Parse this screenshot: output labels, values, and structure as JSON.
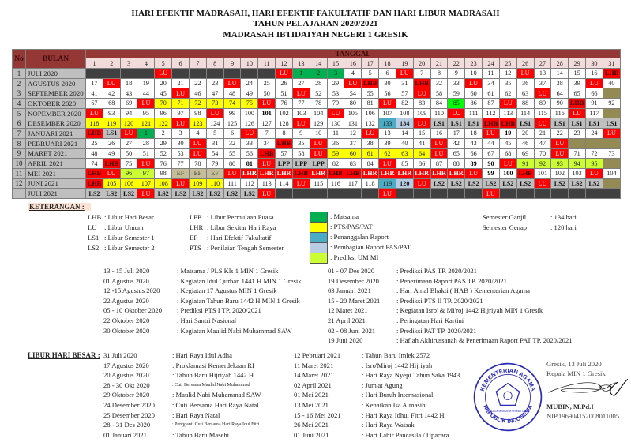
{
  "title": {
    "line1": "HARI EFEKTIF MADRASAH, HARI EFEKTIF FAKULTATIF DAN HARI LIBUR MADRASAH",
    "line2": "TAHUN PELAJARAN 2020/2021",
    "line3": "MADRASAH IBTIDAIYAH NEGERI 1 GRESIK"
  },
  "table": {
    "col_no": "No",
    "col_bulan": "BULAN",
    "col_tanggal": "TANGGAL",
    "days": [
      "1",
      "2",
      "3",
      "4",
      "5",
      "6",
      "7",
      "8",
      "9",
      "10",
      "11",
      "12",
      "13",
      "14",
      "15",
      "16",
      "17",
      "18",
      "19",
      "20",
      "21",
      "22",
      "23",
      "24",
      "25",
      "26",
      "27",
      "28",
      "29",
      "30",
      "31"
    ],
    "rows": [
      {
        "no": "1",
        "month": "JULI 2020",
        "cells": [
          "d:",
          "d:",
          "d:",
          "d:",
          "LU",
          "d:",
          "d:",
          "d:",
          "d:",
          "d:",
          "d:",
          "LU",
          "g:1",
          "g:2",
          "g:3",
          "4",
          "5",
          "6",
          "LU",
          "7",
          "8",
          "9",
          "10",
          "11",
          "12",
          "LU",
          "13",
          "14",
          "15",
          "16",
          "LHB"
        ]
      },
      {
        "no": "2",
        "month": "AGUSTUS 2020",
        "cells": [
          "17",
          "LU",
          "18",
          "19",
          "20",
          "21",
          "22",
          "23",
          "LU",
          "24",
          "25",
          "26",
          "27",
          "28",
          "29",
          "LU",
          "LHB",
          "30",
          "31",
          "LHB",
          "32",
          "33",
          "LU",
          "34",
          "35",
          "36",
          "37",
          "38",
          "39",
          "LU",
          "40"
        ]
      },
      {
        "no": "3",
        "month": "SEPTEMBER 2020",
        "cells": [
          "41",
          "42",
          "43",
          "44",
          "45",
          "LU",
          "46",
          "47",
          "48",
          "49",
          "50",
          "51",
          "LU",
          "52",
          "53",
          "54",
          "55",
          "56",
          "57",
          "LU",
          "58",
          "59",
          "60",
          "61",
          "62",
          "63",
          "LU",
          "64",
          "65",
          "66",
          "o:"
        ]
      },
      {
        "no": "4",
        "month": "OKTOBER 2020",
        "cells": [
          "67",
          "68",
          "69",
          "LU",
          "y:70",
          "y:71",
          "y:72",
          "y:73",
          "y:74",
          "y:75",
          "LU",
          "76",
          "77",
          "78",
          "79",
          "80",
          "81",
          "LU",
          "82",
          "83",
          "84",
          "G:85",
          "86",
          "87",
          "LU",
          "88",
          "89",
          "90",
          "LHB",
          "91",
          "92"
        ]
      },
      {
        "no": "5",
        "month": "NOPEMBER 2020",
        "cells": [
          "LU",
          "93",
          "94",
          "95",
          "96",
          "97",
          "98",
          "LU",
          "99",
          "100",
          "B:101",
          "102",
          "103",
          "104",
          "LU",
          "105",
          "106",
          "107",
          "108",
          "109",
          "110",
          "LU",
          "111",
          "112",
          "113",
          "114",
          "115",
          "116",
          "LU",
          "117",
          "o:"
        ]
      },
      {
        "no": "6",
        "month": "DESEMBER 2020",
        "cells": [
          "y:118",
          "y:119",
          "y:120",
          "y:121",
          "y:122",
          "LU",
          "y:123",
          "124",
          "125",
          "126",
          "127",
          "128",
          "LU",
          "129",
          "130",
          "131",
          "132",
          "t:133",
          "b:134",
          "LU",
          "LS1",
          "LS1",
          "LS1",
          "LHB",
          "LHB",
          "LS1",
          "LU",
          "LS1",
          "LS1",
          "LS1",
          "LS1"
        ]
      },
      {
        "no": "7",
        "month": "JANUARI 2021",
        "cells": [
          "LHB",
          "LS1",
          "LU",
          "g:1",
          "2",
          "3",
          "4",
          "5",
          "6",
          "LU",
          "7",
          "8",
          "9",
          "10",
          "11",
          "12",
          "LU",
          "13",
          "14",
          "15",
          "16",
          "17",
          "18",
          "LU",
          "B:19",
          "20",
          "21",
          "22",
          "23",
          "24",
          "LU"
        ]
      },
      {
        "no": "8",
        "month": "PEBRUARI 2021",
        "cells": [
          "25",
          "26",
          "27",
          "28",
          "29",
          "30",
          "LU",
          "31",
          "32",
          "33",
          "34",
          "LHB",
          "35",
          "LU",
          "36",
          "37",
          "38",
          "39",
          "40",
          "41",
          "LU",
          "42",
          "43",
          "44",
          "45",
          "46",
          "47",
          "LU",
          "o:",
          "o:",
          "o:"
        ]
      },
      {
        "no": "9",
        "month": "MARET 2021",
        "cells": [
          "48",
          "49",
          "50",
          "51",
          "52",
          "53",
          "LU",
          "54",
          "55",
          "56",
          "LHB",
          "57",
          "58",
          "LU",
          "y:59",
          "y:60",
          "y:61",
          "y:62",
          "y:63",
          "y:64",
          "LU",
          "65",
          "66",
          "67",
          "68",
          "69",
          "70",
          "LU",
          "71",
          "72",
          "73"
        ]
      },
      {
        "no": "10",
        "month": "APRIL 2021",
        "cells": [
          "74",
          "LHB",
          "75",
          "LU",
          "76",
          "77",
          "78",
          "79",
          "80",
          "B:81",
          "LU",
          "LPP",
          "LPP",
          "LPP",
          "82",
          "83",
          "84",
          "LU",
          "85",
          "86",
          "87",
          "88",
          "B:89",
          "B:90",
          "LU",
          "l:91",
          "l:92",
          "l:93",
          "l:94",
          "l:95",
          "o:"
        ]
      },
      {
        "no": "11",
        "month": "MEI 2021",
        "cells": [
          "LHB",
          "LU",
          "l:96",
          "l:97",
          "98",
          "EF",
          "EF",
          "EF",
          "LU",
          "LHR",
          "LHR",
          "LHR",
          "LHB",
          "LHR",
          "LHB",
          "LHB",
          "LHR",
          "LHR",
          "LHR",
          "LHR",
          "LHR",
          "LHR",
          "LU",
          "B:99",
          "B:100",
          "LHB",
          "101",
          "102",
          "103",
          "LU",
          "104"
        ]
      },
      {
        "no": "12",
        "month": "JUNI 2021",
        "cells": [
          "LHB",
          "y:105",
          "y:106",
          "y:107",
          "y:108",
          "LU",
          "y:109",
          "y:110",
          "111",
          "112",
          "113",
          "114",
          "LU",
          "115",
          "116",
          "117",
          "118",
          "t:119",
          "b:120",
          "LU",
          "LS2",
          "LS2",
          "LS2",
          "LS2",
          "LS2",
          "LS2",
          "LU",
          "LS2",
          "LS2",
          "LS2",
          "o:"
        ]
      },
      {
        "no": "",
        "month": "JULI 2021",
        "cells": [
          "LS2",
          "LS2",
          "LS2",
          "LU",
          "LS2",
          "LS2",
          "LS2",
          "LS2",
          "LS2",
          "LS2",
          "LU",
          "d:",
          "d:",
          "d:",
          "d:",
          "d:",
          "d:",
          "LU",
          "d:",
          "d:",
          "d:",
          "d:",
          "d:",
          "LU",
          "d:",
          "d:",
          "d:",
          "d:",
          "d:",
          "d:",
          "d:"
        ]
      }
    ]
  },
  "colors": {
    "header": "#953734",
    "holiday_red": "#ff0000",
    "matsama": "#00b050",
    "pts_pas_pat": "#ffff00",
    "penanggalan_raport": "#4bacc6",
    "pembagian_raport": "#b8cce4",
    "prediksi_um": "#ccff33",
    "ef": "#c4bd97",
    "no_date": "#948a54",
    "outside_term": "#404040",
    "semester_break": "#bfbfbf"
  },
  "keterangan": {
    "heading": "KETERANGAN :",
    "abbr_left": [
      {
        "code": "LHB",
        "desc": ": Libur Hari Besar"
      },
      {
        "code": "LU",
        "desc": ": Libur Umum"
      },
      {
        "code": "LS1",
        "desc": ": Libur Semester 1"
      },
      {
        "code": "LS2",
        "desc": ": Libur Semester 2"
      }
    ],
    "abbr_right": [
      {
        "code": "LPP",
        "desc": ": Libur Permulaan Puasa"
      },
      {
        "code": "LHR",
        "desc": ": Libur Sekitar Hari Raya"
      },
      {
        "code": "EF",
        "desc": ": Hari Efektif Fakultatif"
      },
      {
        "code": "PTS",
        "desc": ": Penilaian Tengah Semester"
      }
    ],
    "swatches": [
      {
        "color": "#00b050",
        "label": ": Matsama"
      },
      {
        "color": "#ffff00",
        "label": ": PTS/PAS/PAT"
      },
      {
        "color": "#4bacc6",
        "label": ": Penanggalan Raport"
      },
      {
        "color": "#b8cce4",
        "label": ": Pembagian Raport PAS/PAT"
      },
      {
        "color": "#ccff33",
        "label": ": Prediksi UM MI"
      }
    ],
    "semester": [
      {
        "label": "Semester Ganjil",
        "value": ": 134 hari"
      },
      {
        "label": "Semester Genap",
        "value": ": 120 hari"
      }
    ]
  },
  "events_left": [
    {
      "date": "13 - 15 Juli 2020",
      "desc": ": Matsama / PLS Kls 1 MIN 1 Gresik"
    },
    {
      "date": "01 Agustus 2020",
      "desc": ": Kegiatan Idul Qurban 1441 H MIN 1 Gresik"
    },
    {
      "date": "12 -15 Agustus 2020",
      "desc": ": Kegiatan 17 Agustus MIN 1 Gresik"
    },
    {
      "date": "22 Agustus 2020",
      "desc": ": Kegiatan Tahun Baru 1442 H MIN 1 Gresik"
    },
    {
      "date": "05 - 10 Oktober 2020",
      "desc": ": Prediksi PTS I TP. 2020/2021"
    },
    {
      "date": "22 Oktober 2020",
      "desc": ": Hari Santri Nasional"
    },
    {
      "date": "30 Oktober 2020",
      "desc": ": Kegiatan Maulid Nabi Muhammad SAW"
    }
  ],
  "events_right": [
    {
      "date": "01 - 07 Des 2020",
      "desc": ": Prediksi PAS TP. 2020/2021"
    },
    {
      "date": "19 Desember 2020",
      "desc": ": Penerimaan Raport PAS TP. 2020/2021"
    },
    {
      "date": "03 Januari 2021",
      "desc": ": Hari Amal Bhakti ( HAB ) Kementerian Agama"
    },
    {
      "date": "15 - 20 Maret 2021",
      "desc": ": Prediksi PTS II TP. 2020/2021"
    },
    {
      "date": "12 Maret 2021",
      "desc": ": Kegiatan Isro' & Mi'roj 1442 Hijriyah MIN 1 Gresik"
    },
    {
      "date": "21 April 2021",
      "desc": ": Peringatan Hari Kartini"
    },
    {
      "date": "02 - 08 Juni 2021",
      "desc": ": Prediksi PAT TP. 2020/2021"
    },
    {
      "date": "19 Juni 2020",
      "desc": ": Haflah Akhirussanah & Penerimaan Raport PAT TP. 2020/2021"
    }
  ],
  "libur": {
    "heading": "LIBUR HARI BESAR :",
    "left": [
      {
        "date": "31 Juli 2020",
        "desc": ": Hari Raya Idul Adha"
      },
      {
        "date": "17 Agustus 2020",
        "desc": ": Proklamasi Kemerdekaan RI"
      },
      {
        "date": "20 Agustus 2020",
        "desc": ": Tahun Baru Hijriyah 1442 H"
      },
      {
        "date": "28 - 30 Okt 2020",
        "desc": ": Cuti Bersama Maulid Nabi Muhammad",
        "small": true
      },
      {
        "date": "29 Oktober 2020",
        "desc": ": Maulid Nabi Muhammad SAW"
      },
      {
        "date": "24 Desember 2020",
        "desc": ": Cuti Bersama Hari Raya Natal"
      },
      {
        "date": "25 Desember 2020",
        "desc": ": Hari Raya Natal"
      },
      {
        "date": "28 - 31 Des 2020",
        "desc": ": Pengganti Cuti Bersama Hari Raya Idul Fitri",
        "small": true
      },
      {
        "date": "01 Januari 2021",
        "desc": ": Tahun Baru Masehi"
      }
    ],
    "right": [
      {
        "date": "12 Pebruari 2021",
        "desc": ": Tahun Baru Imlek 2572"
      },
      {
        "date": "11 Maret 2021",
        "desc": ": Isro'Miroj 1442 Hijriyah"
      },
      {
        "date": "14 Maret 2021",
        "desc": ": Hari Raya Nyepi Tahun Saka 1943"
      },
      {
        "date": "02 April 2021",
        "desc": ": Jum'at Agung"
      },
      {
        "date": "01 Mei 2021",
        "desc": ": Hari Buruh Internasional"
      },
      {
        "date": "13 Mei 2021",
        "desc": ": Kenaikan Isa Almasih"
      },
      {
        "date": "15 - 16 Mei 2021",
        "desc": ": Hari Raya Idhul Fitri 1442 H"
      },
      {
        "date": "26 Mei 2021",
        "desc": ": Hari Raya Waisak"
      },
      {
        "date": "01 Juni 2021",
        "desc": ": Hari Lahir Pancasila / Upacara"
      }
    ]
  },
  "signature": {
    "place_date": "Gresik, 13 Juli 2020",
    "position": "Kepala MIN 1 Gresik",
    "name": "MUBIN, M.Pd.I",
    "nip": "NIP.196904152008011005"
  },
  "stamp": {
    "top_text": "KEMENTERIAN AGAMA",
    "bottom_text": "REPUBLIK INDONESIA",
    "inner_text": "MADRASAH IBTIDAIYAH NEGERI 1 GRESIK"
  }
}
